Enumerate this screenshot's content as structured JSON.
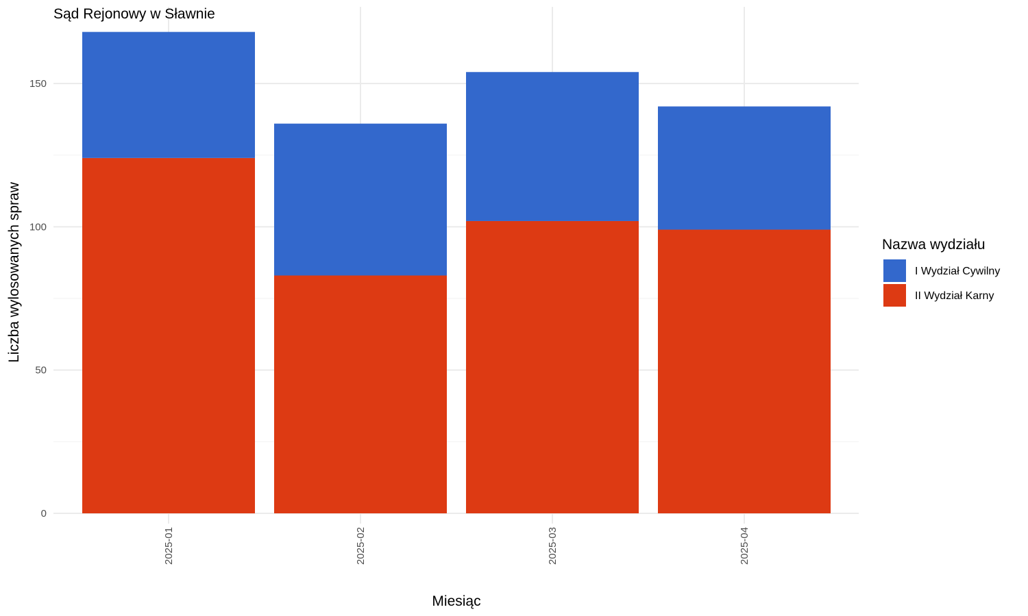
{
  "chart_data": {
    "type": "bar",
    "stacked": true,
    "title": "Sąd Rejonowy w Sławnie",
    "xlabel": "Miesiąc",
    "ylabel": "Liczba wylosowanych spraw",
    "categories": [
      "2025-01",
      "2025-02",
      "2025-03",
      "2025-04"
    ],
    "series": [
      {
        "name": "II Wydział Karny",
        "color": "#DD3A13",
        "values": [
          124,
          83,
          102,
          99
        ]
      },
      {
        "name": "I Wydział Cywilny",
        "color": "#3368CC",
        "values": [
          44,
          53,
          52,
          43
        ]
      }
    ],
    "ylim": [
      0,
      168
    ],
    "yticks": [
      0,
      50,
      100,
      150
    ],
    "grid": true,
    "legend": {
      "title": "Nazwa wydziału",
      "position": "right",
      "items": [
        {
          "label": "I Wydział Cywilny",
          "color": "#3368CC"
        },
        {
          "label": "II Wydział Karny",
          "color": "#DD3A13"
        }
      ]
    }
  }
}
